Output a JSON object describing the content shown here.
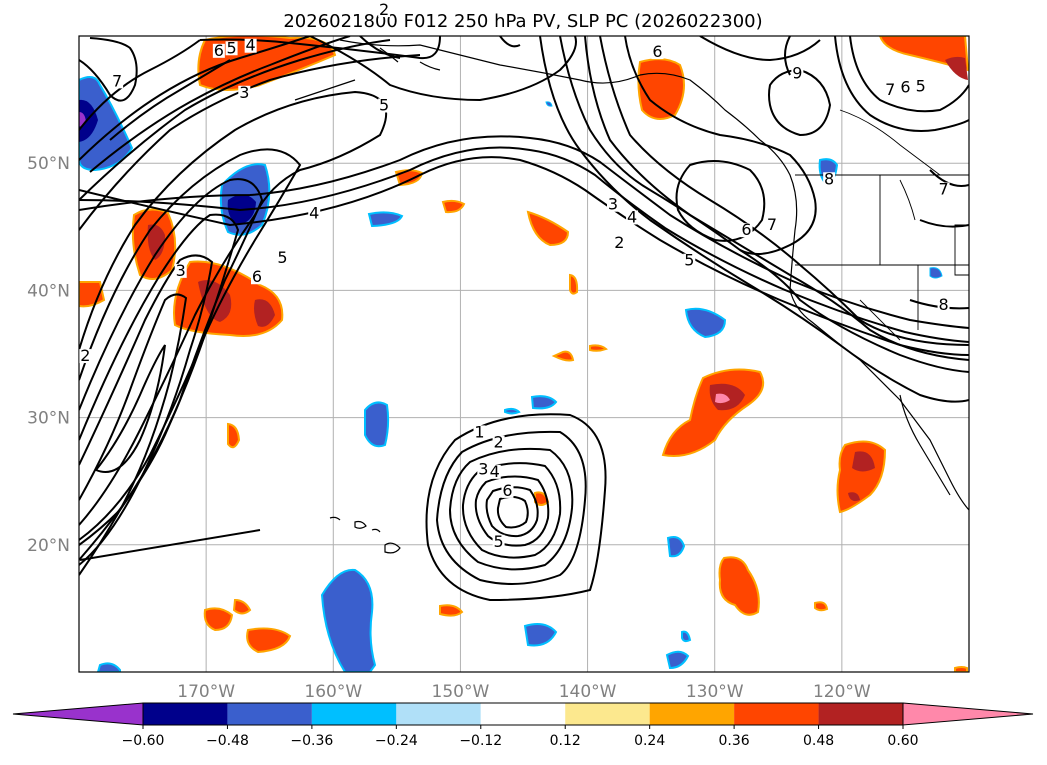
{
  "title": "2026021800 F012 250 hPa PV, SLP PC (2026022300)",
  "map": {
    "lon_range": [
      -180,
      -110
    ],
    "lat_range": [
      10,
      60
    ],
    "lat_ticks": [
      {
        "value": 20,
        "label": "20°N"
      },
      {
        "value": 30,
        "label": "30°N"
      },
      {
        "value": 40,
        "label": "40°N"
      },
      {
        "value": 50,
        "label": "50°N"
      }
    ],
    "lon_ticks": [
      {
        "value": -170,
        "label": "170°W"
      },
      {
        "value": -160,
        "label": "160°W"
      },
      {
        "value": -150,
        "label": "150°W"
      },
      {
        "value": -140,
        "label": "140°W"
      },
      {
        "value": -130,
        "label": "130°W"
      },
      {
        "value": -120,
        "label": "120°W"
      }
    ]
  },
  "contour_labels": [
    {
      "lon": -177,
      "lat": 56.2,
      "text": "7"
    },
    {
      "lon": -169,
      "lat": 58.6,
      "text": "6"
    },
    {
      "lon": -168,
      "lat": 58.8,
      "text": "5"
    },
    {
      "lon": -166.5,
      "lat": 59.0,
      "text": "4"
    },
    {
      "lon": -167,
      "lat": 55.3,
      "text": "3"
    },
    {
      "lon": -156,
      "lat": 54.3,
      "text": "5"
    },
    {
      "lon": -166,
      "lat": 40.8,
      "text": "6"
    },
    {
      "lon": -164,
      "lat": 42.3,
      "text": "5"
    },
    {
      "lon": -161.5,
      "lat": 45.8,
      "text": "4"
    },
    {
      "lon": -172,
      "lat": 41.3,
      "text": "3"
    },
    {
      "lon": -179.5,
      "lat": 34.6,
      "text": "2"
    },
    {
      "lon": -156,
      "lat": 61.8,
      "text": "2"
    },
    {
      "lon": -138,
      "lat": 46.5,
      "text": "3"
    },
    {
      "lon": -136.5,
      "lat": 45.5,
      "text": "4"
    },
    {
      "lon": -137.5,
      "lat": 43.5,
      "text": "2"
    },
    {
      "lon": -132,
      "lat": 42.1,
      "text": "5"
    },
    {
      "lon": -127.5,
      "lat": 44.5,
      "text": "6"
    },
    {
      "lon": -125.5,
      "lat": 44.9,
      "text": "7"
    },
    {
      "lon": -121,
      "lat": 48.5,
      "text": "8"
    },
    {
      "lon": -123.5,
      "lat": 56.8,
      "text": "9"
    },
    {
      "lon": -134.5,
      "lat": 58.5,
      "text": "6"
    },
    {
      "lon": -116.2,
      "lat": 55.5,
      "text": "7"
    },
    {
      "lon": -115,
      "lat": 55.7,
      "text": "6"
    },
    {
      "lon": -113.8,
      "lat": 55.8,
      "text": "5"
    },
    {
      "lon": -112,
      "lat": 47.7,
      "text": "7"
    },
    {
      "lon": -112,
      "lat": 38.6,
      "text": "8"
    },
    {
      "lon": -148.5,
      "lat": 28.6,
      "text": "1"
    },
    {
      "lon": -147.0,
      "lat": 27.8,
      "text": "2"
    },
    {
      "lon": -148.2,
      "lat": 25.7,
      "text": "3"
    },
    {
      "lon": -147.3,
      "lat": 25.5,
      "text": "4"
    },
    {
      "lon": -146.3,
      "lat": 24.0,
      "text": "6"
    },
    {
      "lon": -147.0,
      "lat": 20.0,
      "text": "5"
    }
  ],
  "colorbar": {
    "colors": [
      "#9932cc",
      "#00008b",
      "#3a5fcd",
      "#00bfff",
      "#b0e0f8",
      "#ffffff",
      "#fce88e",
      "#ffa500",
      "#ff4500",
      "#b22222",
      "#ff88aa"
    ],
    "tick_labels": [
      "−0.60",
      "−0.48",
      "−0.36",
      "−0.24",
      "−0.12",
      "0.12",
      "0.24",
      "0.36",
      "0.48",
      "0.60"
    ]
  }
}
